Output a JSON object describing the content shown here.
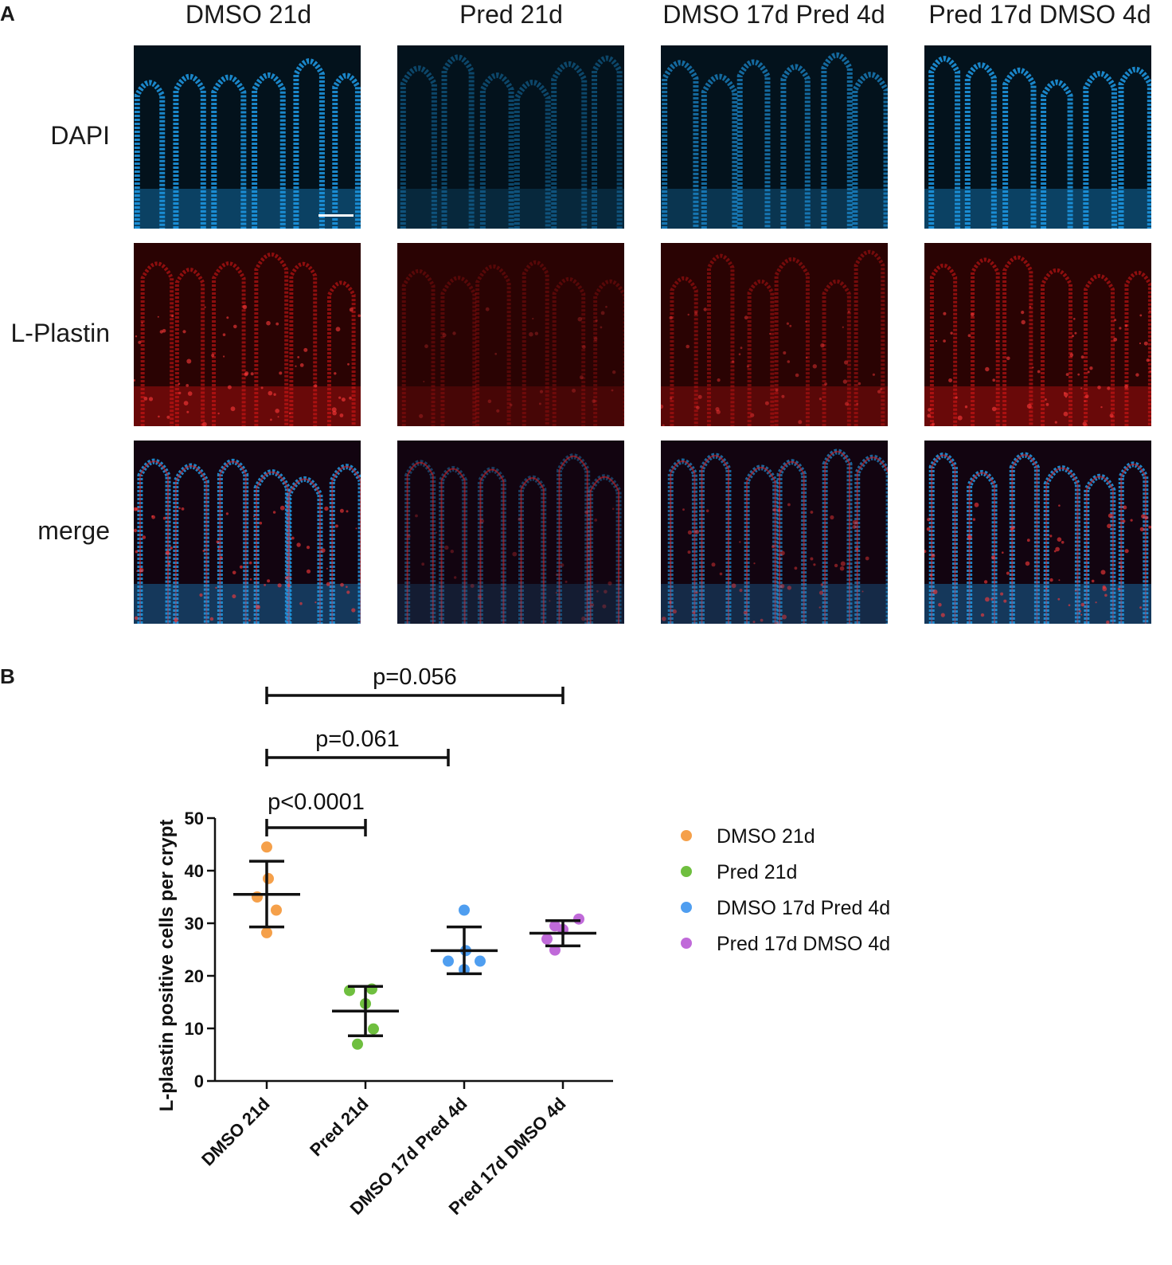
{
  "panel_a": {
    "letter": "A",
    "columns": [
      "DMSO 21d",
      "Pred 21d",
      "DMSO 17d Pred 4d",
      "Pred 17d DMSO 4d"
    ],
    "rows": [
      "DAPI",
      "L-Plastin",
      "merge"
    ]
  },
  "panel_b": {
    "letter": "B"
  },
  "colors": {
    "dmso21": "#f5a04a",
    "pred21": "#6fbf3f",
    "dmso17pred4": "#4f9ef0",
    "pred17dmso4": "#c06ad9",
    "dapi": "#1e9be8",
    "lplastin": "#e01818"
  },
  "chart_data": {
    "type": "scatter",
    "title": "",
    "xlabel": "",
    "ylabel": "L-plastin positive cells per crypt",
    "categories": [
      "DMSO 21d",
      "Pred 21d",
      "DMSO 17d Pred 4d",
      "Pred 17d DMSO 4d"
    ],
    "ylim": [
      0,
      50
    ],
    "yticks": [
      0,
      10,
      20,
      30,
      40,
      50
    ],
    "grid": false,
    "legend_position": "right",
    "series": [
      {
        "name": "DMSO 21d",
        "color": "#f5a04a",
        "points": [
          44.5,
          38.5,
          35.0,
          32.5,
          28.2
        ],
        "mean": 35.5,
        "error_low": 29.3,
        "error_high": 41.8
      },
      {
        "name": "Pred 21d",
        "color": "#6fbf3f",
        "points": [
          17.5,
          17.2,
          14.7,
          9.9,
          7.0
        ],
        "mean": 13.3,
        "error_low": 8.6,
        "error_high": 18.0
      },
      {
        "name": "DMSO 17d Pred 4d",
        "color": "#4f9ef0",
        "points": [
          32.5,
          24.8,
          22.8,
          22.8,
          21.2
        ],
        "mean": 24.8,
        "error_low": 20.4,
        "error_high": 29.3
      },
      {
        "name": "Pred 17d DMSO 4d",
        "color": "#c06ad9",
        "points": [
          30.8,
          29.5,
          28.8,
          27.0,
          24.9
        ],
        "mean": 28.1,
        "error_low": 25.7,
        "error_high": 30.5
      }
    ],
    "annotations": [
      {
        "text": "p<0.0001",
        "from": 0,
        "to": 1,
        "level": 0
      },
      {
        "text": "p=0.061",
        "from": 0,
        "to": 2,
        "level": 1
      },
      {
        "text": "p=0.056",
        "from": 0,
        "to": 3,
        "level": 2
      }
    ]
  }
}
